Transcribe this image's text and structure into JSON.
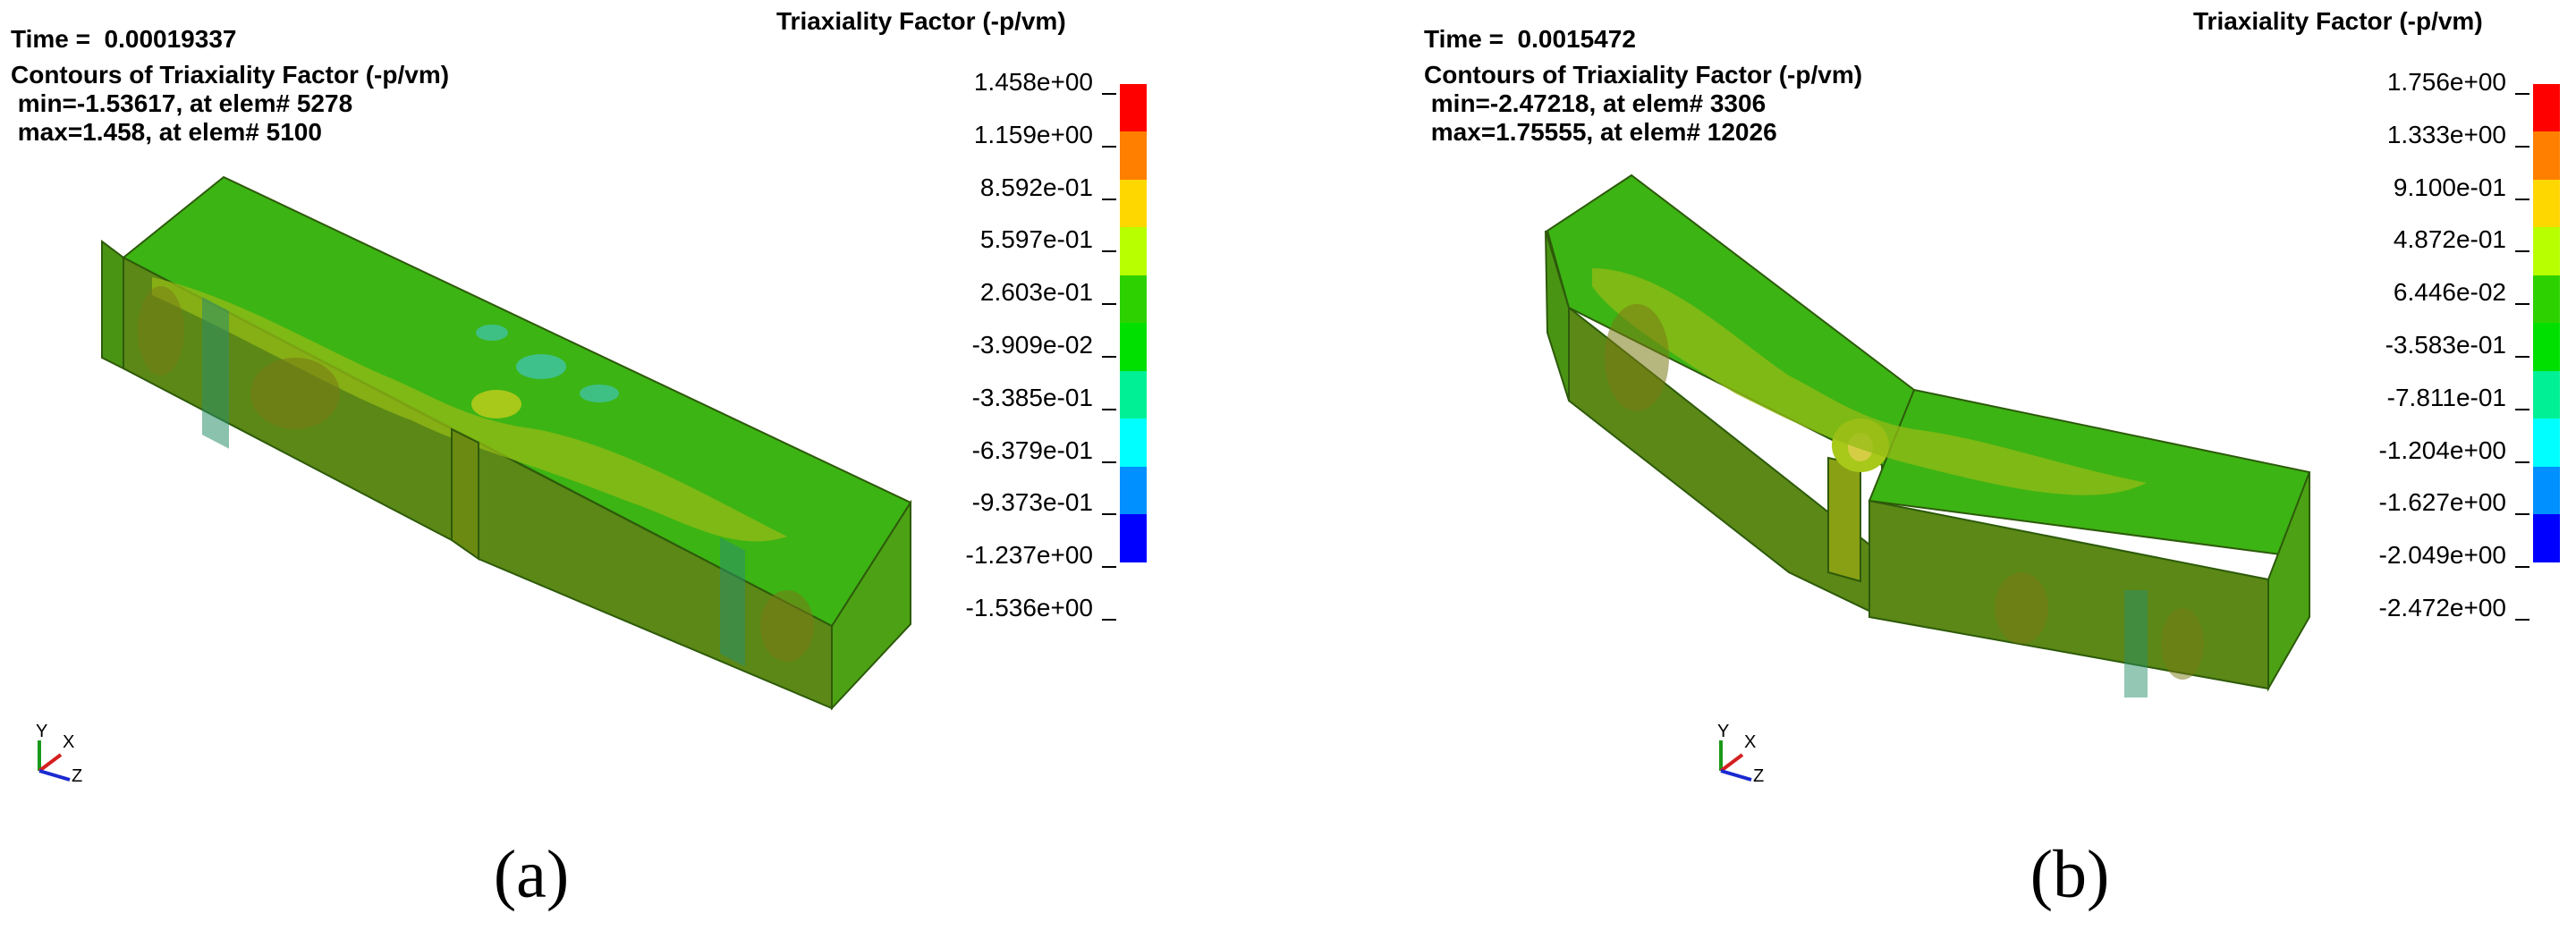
{
  "panels": [
    {
      "time_label": "Time =  0.00019337",
      "contour_title": "Contours of Triaxiality Factor (-p/vm)",
      "min_line": " min=-1.53617, at elem# 5278",
      "max_line": " max=1.458, at elem# 5100",
      "legend_title": "Triaxiality Factor (-p/vm)",
      "levels": [
        "1.458e+00",
        "1.159e+00",
        "8.592e-01",
        "5.597e-01",
        "2.603e-01",
        "-3.909e-02",
        "-3.385e-01",
        "-6.379e-01",
        "-9.373e-01",
        "-1.237e+00",
        "-1.536e+00"
      ],
      "caption": "(a)"
    },
    {
      "time_label": "Time =  0.0015472",
      "contour_title": "Contours of Triaxiality Factor (-p/vm)",
      "min_line": " min=-2.47218, at elem# 3306",
      "max_line": " max=1.75555, at elem# 12026",
      "legend_title": "Triaxiality Factor (-p/vm)",
      "levels": [
        "1.756e+00",
        "1.333e+00",
        "9.100e-01",
        "4.872e-01",
        "6.446e-02",
        "-3.583e-01",
        "-7.811e-01",
        "-1.204e+00",
        "-1.627e+00",
        "-2.049e+00",
        "-2.472e+00"
      ],
      "caption": "(b)"
    }
  ],
  "colorbar_colors": [
    "#ff0000",
    "#ff7f00",
    "#ffd700",
    "#b8ff00",
    "#2ed100",
    "#00e000",
    "#00f095",
    "#00ffff",
    "#0090ff",
    "#0000ff"
  ],
  "model_colors": {
    "top": "#3cb414",
    "front": "#5a8a14",
    "side": "#4fa015",
    "patch_yellow": "#9fbe14",
    "patch_brown": "#7a7a16",
    "patch_teal": "#2a8f6a",
    "patch_cyan": "#3ec3a0",
    "edge": "#2d5a0a"
  },
  "triad": {
    "y": "Y",
    "x": "X",
    "z": "Z"
  }
}
